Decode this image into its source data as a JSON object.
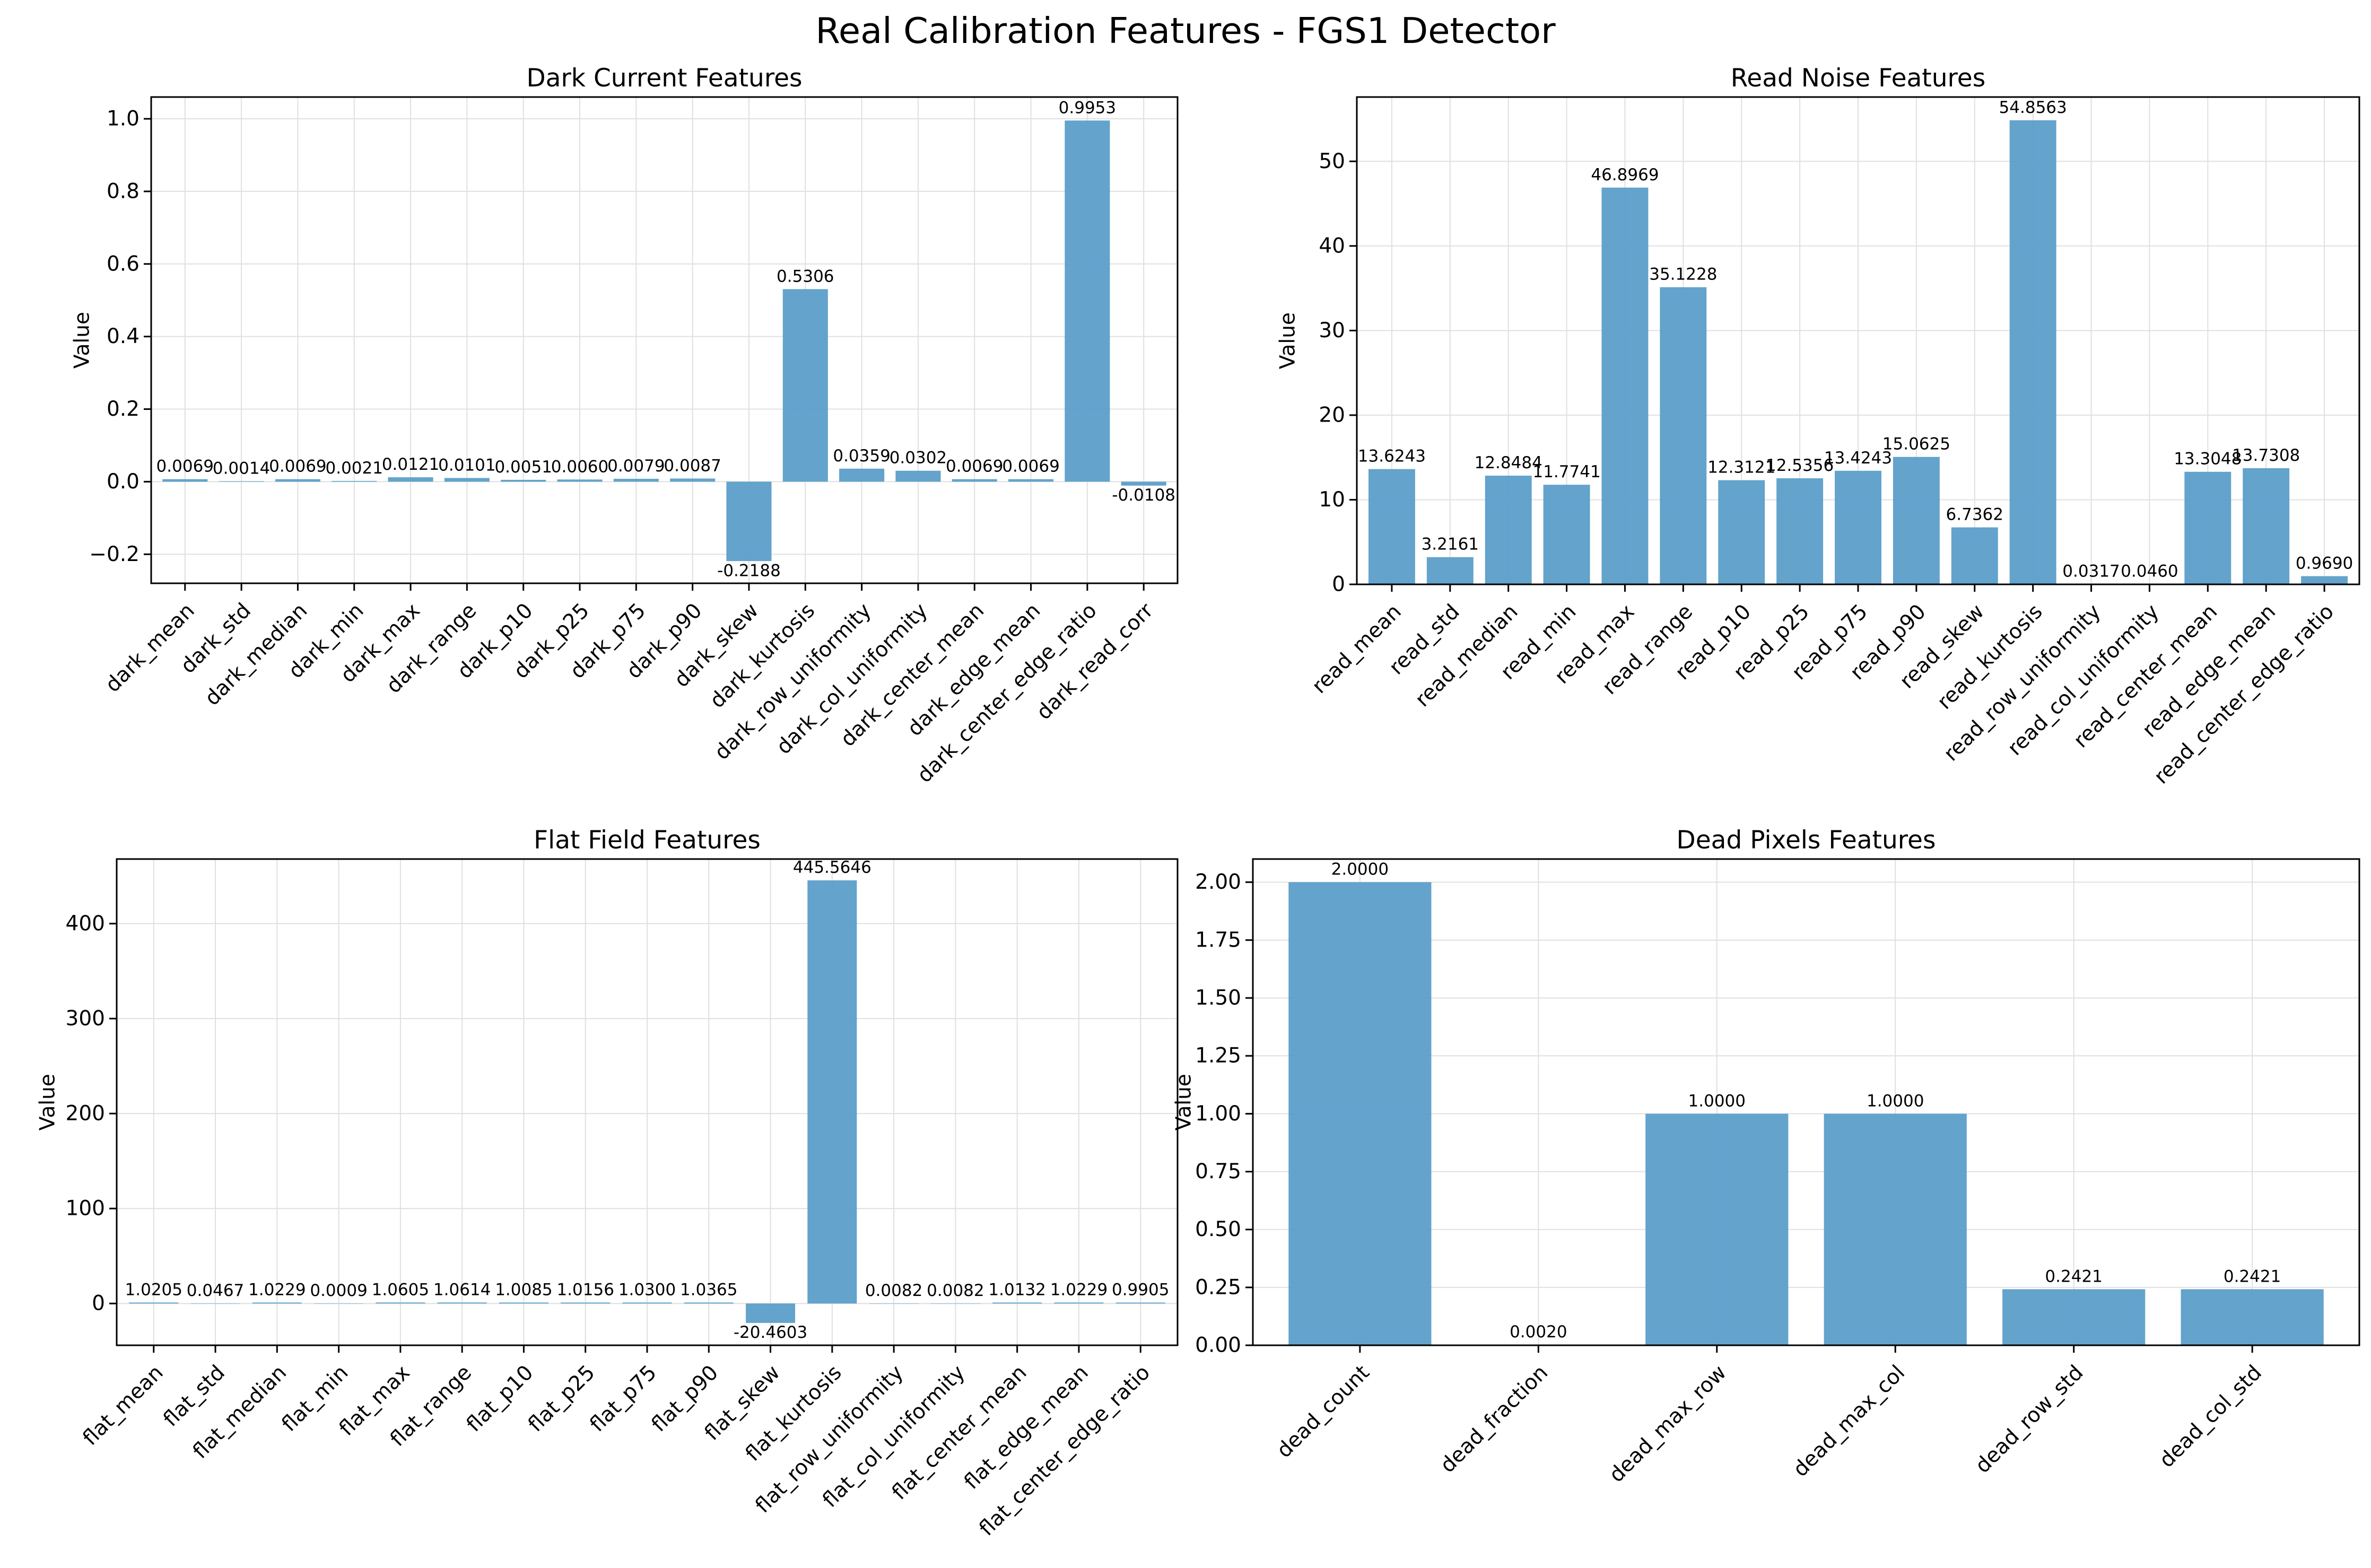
{
  "figure": {
    "title": "Real Calibration Features - FGS1 Detector"
  },
  "colors": {
    "bar": "#5b9ec9",
    "grid": "#e0e0e0",
    "axis": "#000000",
    "background": "#ffffff"
  },
  "chart_data": [
    {
      "id": "dark",
      "type": "bar",
      "title": "Dark Current Features",
      "xlabel": "",
      "ylabel": "Value",
      "grid": true,
      "ylim": [
        -0.28,
        1.06
      ],
      "yticks": [
        -0.2,
        0.0,
        0.2,
        0.4,
        0.6,
        0.8,
        1.0
      ],
      "ytick_labels": [
        "−0.2",
        "0.0",
        "0.2",
        "0.4",
        "0.6",
        "0.8",
        "1.0"
      ],
      "categories": [
        "dark_mean",
        "dark_std",
        "dark_median",
        "dark_min",
        "dark_max",
        "dark_range",
        "dark_p10",
        "dark_p25",
        "dark_p75",
        "dark_p90",
        "dark_skew",
        "dark_kurtosis",
        "dark_row_uniformity",
        "dark_col_uniformity",
        "dark_center_mean",
        "dark_edge_mean",
        "dark_center_edge_ratio",
        "dark_read_corr"
      ],
      "values": [
        0.0069,
        0.0014,
        0.0069,
        0.0021,
        0.0121,
        0.0101,
        0.0051,
        0.006,
        0.0079,
        0.0087,
        -0.2188,
        0.5306,
        0.0359,
        0.0302,
        0.0069,
        0.0069,
        0.9953,
        -0.0108
      ],
      "value_labels": [
        "0.0069",
        "0.0014",
        "0.0069",
        "0.0021",
        "0.0121",
        "0.0101",
        "0.0051",
        "0.0060",
        "0.0079",
        "0.0087",
        "-0.2188",
        "0.5306",
        "0.0359",
        "0.0302",
        "0.0069",
        "0.0069",
        "0.9953",
        "-0.0108"
      ]
    },
    {
      "id": "read",
      "type": "bar",
      "title": "Read Noise Features",
      "xlabel": "",
      "ylabel": "Value",
      "grid": true,
      "ylim": [
        0,
        57.6
      ],
      "yticks": [
        0,
        10,
        20,
        30,
        40,
        50
      ],
      "ytick_labels": [
        "0",
        "10",
        "20",
        "30",
        "40",
        "50"
      ],
      "categories": [
        "read_mean",
        "read_std",
        "read_median",
        "read_min",
        "read_max",
        "read_range",
        "read_p10",
        "read_p25",
        "read_p75",
        "read_p90",
        "read_skew",
        "read_kurtosis",
        "read_row_uniformity",
        "read_col_uniformity",
        "read_center_mean",
        "read_edge_mean",
        "read_center_edge_ratio"
      ],
      "values": [
        13.6243,
        3.2161,
        12.8484,
        11.7741,
        46.8969,
        35.1228,
        12.3121,
        12.5356,
        13.4243,
        15.0625,
        6.7362,
        54.8563,
        0.0317,
        0.046,
        13.3048,
        13.7308,
        0.969
      ],
      "value_labels": [
        "13.6243",
        "3.2161",
        "12.8484",
        "11.7741",
        "46.8969",
        "35.1228",
        "12.3121",
        "12.5356",
        "13.4243",
        "15.0625",
        "6.7362",
        "54.8563",
        "0.0317",
        "0.0460",
        "13.3048",
        "13.7308",
        "0.9690"
      ]
    },
    {
      "id": "flat",
      "type": "bar",
      "title": "Flat Field Features",
      "xlabel": "",
      "ylabel": "Value",
      "grid": true,
      "ylim": [
        -44,
        468
      ],
      "yticks": [
        0,
        100,
        200,
        300,
        400
      ],
      "ytick_labels": [
        "0",
        "100",
        "200",
        "300",
        "400"
      ],
      "categories": [
        "flat_mean",
        "flat_std",
        "flat_median",
        "flat_min",
        "flat_max",
        "flat_range",
        "flat_p10",
        "flat_p25",
        "flat_p75",
        "flat_p90",
        "flat_skew",
        "flat_kurtosis",
        "flat_row_uniformity",
        "flat_col_uniformity",
        "flat_center_mean",
        "flat_edge_mean",
        "flat_center_edge_ratio"
      ],
      "values": [
        1.0205,
        0.0467,
        1.0229,
        0.0009,
        1.0605,
        1.0614,
        1.0085,
        1.0156,
        1.03,
        1.0365,
        -20.4603,
        445.5646,
        0.0082,
        0.0082,
        1.0132,
        1.0229,
        0.9905
      ],
      "value_labels": [
        "1.0205",
        "0.0467",
        "1.0229",
        "0.0009",
        "1.0605",
        "1.0614",
        "1.0085",
        "1.0156",
        "1.0300",
        "1.0365",
        "-20.4603",
        "445.5646",
        "0.0082",
        "0.0082",
        "1.0132",
        "1.0229",
        "0.9905"
      ]
    },
    {
      "id": "dead",
      "type": "bar",
      "title": "Dead Pixels Features",
      "xlabel": "",
      "ylabel": "Value",
      "grid": true,
      "ylim": [
        0,
        2.1
      ],
      "yticks": [
        0,
        0.25,
        0.5,
        0.75,
        1.0,
        1.25,
        1.5,
        1.75,
        2.0
      ],
      "ytick_labels": [
        "0.00",
        "0.25",
        "0.50",
        "0.75",
        "1.00",
        "1.25",
        "1.50",
        "1.75",
        "2.00"
      ],
      "categories": [
        "dead_count",
        "dead_fraction",
        "dead_max_row",
        "dead_max_col",
        "dead_row_std",
        "dead_col_std"
      ],
      "values": [
        2.0,
        0.002,
        1.0,
        1.0,
        0.2421,
        0.2421
      ],
      "value_labels": [
        "2.0000",
        "0.0020",
        "1.0000",
        "1.0000",
        "0.2421",
        "0.2421"
      ]
    }
  ]
}
